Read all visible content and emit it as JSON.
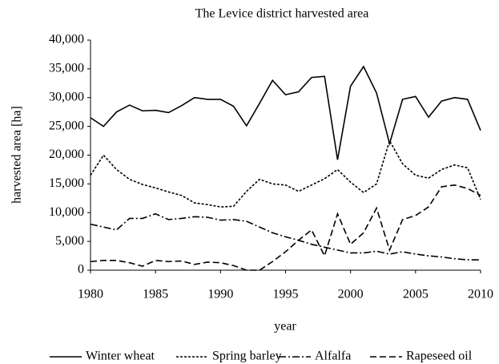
{
  "chart_data": {
    "type": "line",
    "title": "The Levice district harvested area",
    "x_label": "year",
    "y_label": "harvested area [ha]",
    "x": [
      1980,
      1981,
      1982,
      1983,
      1984,
      1985,
      1986,
      1987,
      1988,
      1989,
      1990,
      1991,
      1992,
      1993,
      1994,
      1995,
      1996,
      1997,
      1998,
      1999,
      2000,
      2001,
      2002,
      2003,
      2004,
      2005,
      2006,
      2007,
      2008,
      2009,
      2010
    ],
    "xlim": [
      1980,
      2010
    ],
    "xticks": [
      1980,
      1985,
      1990,
      1995,
      2000,
      2005,
      2010
    ],
    "ylim": [
      0,
      40000
    ],
    "yticks": [
      0,
      {
        "value": 5000,
        "label": "5,000"
      },
      {
        "value": 10000,
        "label": "10,000"
      },
      {
        "value": 15000,
        "label": "15,000"
      },
      {
        "value": 20000,
        "label": "20,000"
      },
      {
        "value": 25000,
        "label": "25,000"
      },
      {
        "value": 30000,
        "label": "30,000"
      },
      {
        "value": 35000,
        "label": "35,000"
      },
      {
        "value": 40000,
        "label": "40,000"
      }
    ],
    "legend": "bottom",
    "series": [
      {
        "name": "Winter wheat",
        "color": "#000000",
        "dash": "solid",
        "values": [
          26500,
          25000,
          27500,
          28700,
          27700,
          27800,
          27400,
          28600,
          30000,
          29700,
          29700,
          28500,
          25100,
          29000,
          33000,
          30500,
          31000,
          33500,
          33700,
          19200,
          32000,
          35400,
          30800,
          22000,
          29700,
          30200,
          26600,
          29400,
          30000,
          29700,
          24300
        ]
      },
      {
        "name": "Spring barley",
        "color": "#000000",
        "dash": "dotted",
        "values": [
          16500,
          20000,
          17500,
          15800,
          14900,
          14300,
          13600,
          13000,
          11700,
          11400,
          11000,
          11100,
          13700,
          15800,
          15000,
          14800,
          13700,
          14800,
          15900,
          17500,
          15300,
          13500,
          15000,
          22500,
          18500,
          16500,
          16000,
          17500,
          18300,
          17800,
          12300
        ]
      },
      {
        "name": "Alfalfa",
        "color": "#000000",
        "dash": "dash-dot",
        "values": [
          8000,
          7500,
          7000,
          9000,
          9000,
          9800,
          8800,
          9000,
          9300,
          9200,
          8700,
          8800,
          8500,
          7500,
          6500,
          5800,
          5200,
          4500,
          4000,
          3500,
          3000,
          3000,
          3300,
          2800,
          3200,
          2800,
          2500,
          2300,
          2000,
          1800,
          1800
        ]
      },
      {
        "name": "Rapeseed oil",
        "color": "#000000",
        "dash": "dashed",
        "values": [
          1500,
          1700,
          1700,
          1300,
          700,
          1700,
          1500,
          1600,
          1000,
          1400,
          1300,
          800,
          0,
          0,
          1500,
          3200,
          5200,
          7000,
          2500,
          9800,
          4500,
          6500,
          10800,
          3500,
          8800,
          9500,
          11000,
          14500,
          14800,
          14200,
          13000
        ]
      }
    ]
  }
}
